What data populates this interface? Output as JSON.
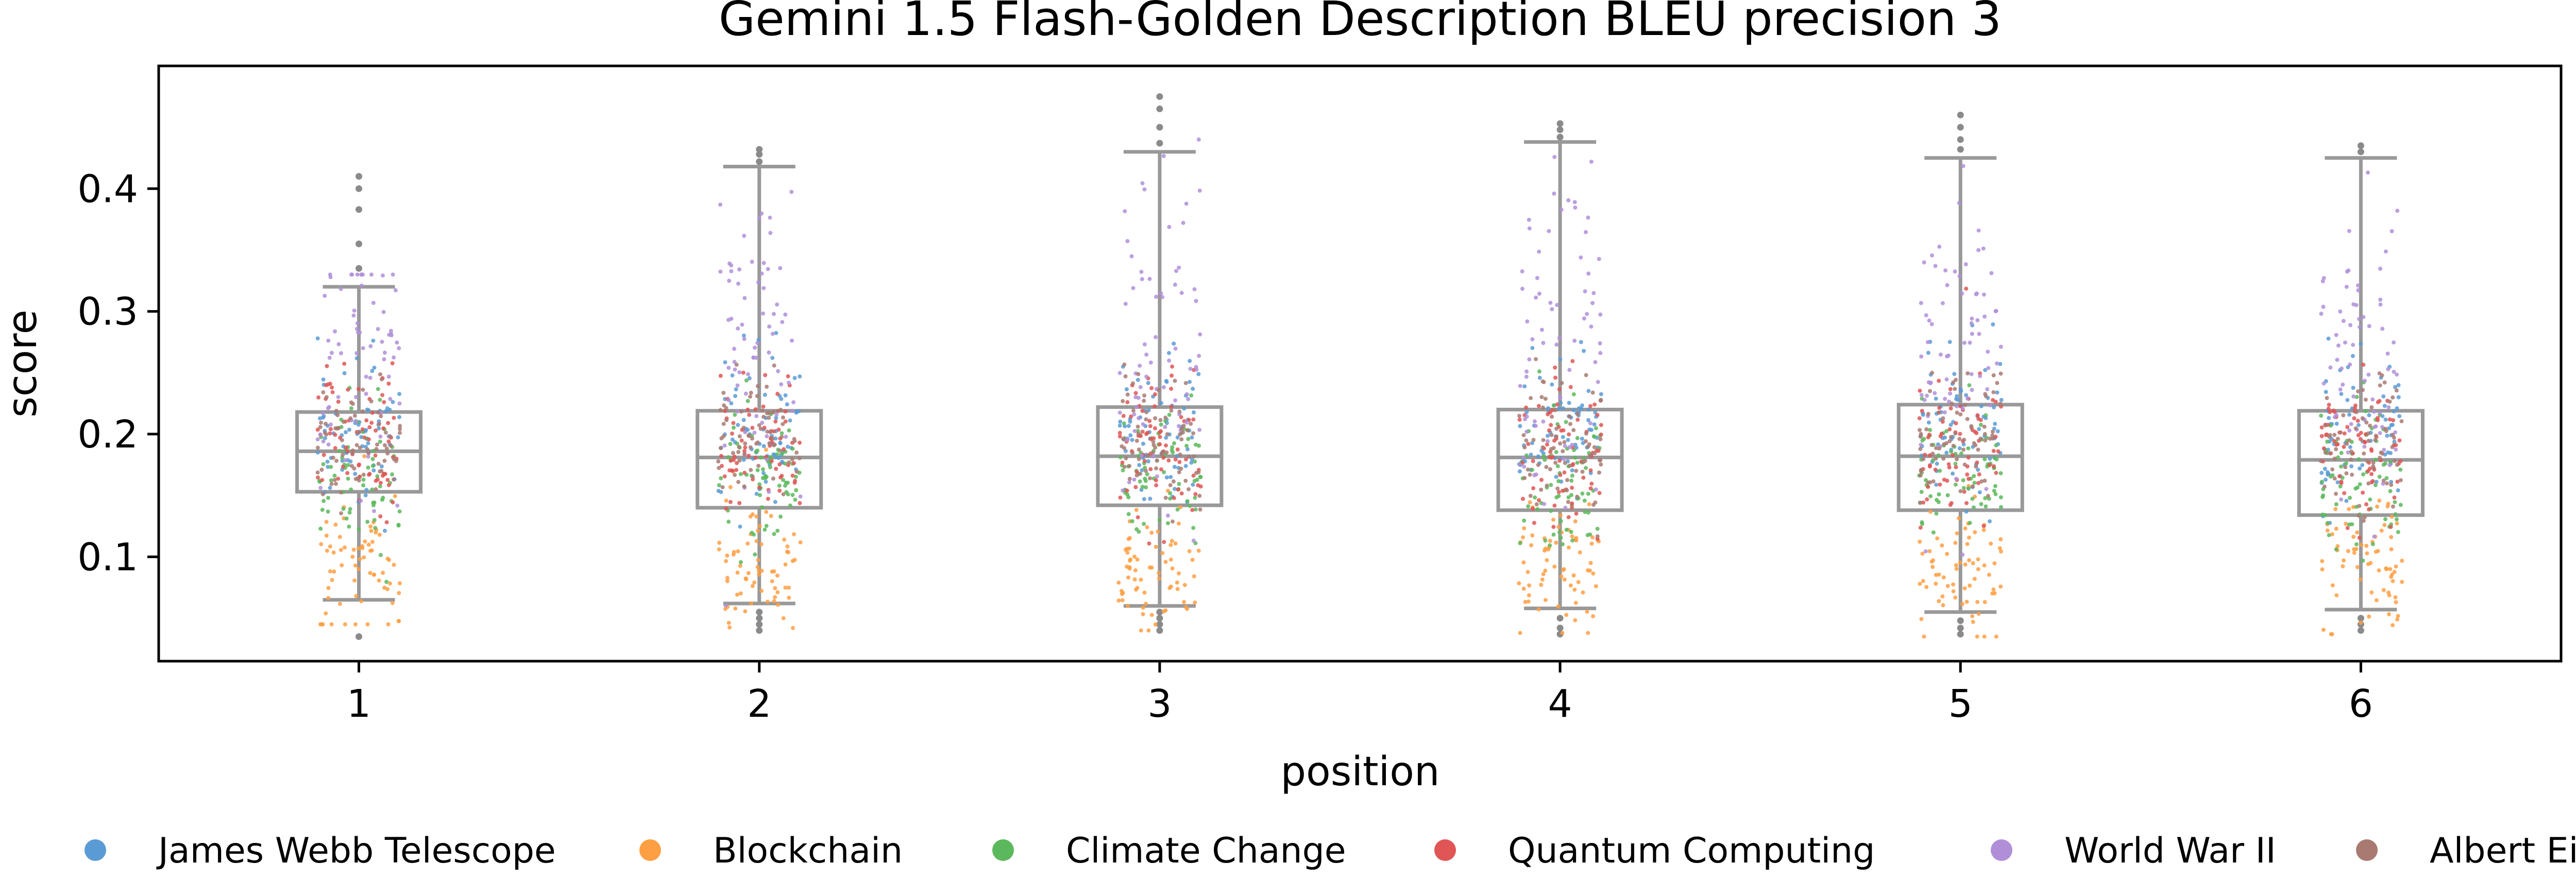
{
  "chart_data": {
    "type": "box-strip",
    "title": "Gemini 1.5 Flash-Golden Description BLEU precision 3",
    "xlabel": "position",
    "ylabel": "score",
    "categories": [
      "1",
      "2",
      "3",
      "4",
      "5",
      "6"
    ],
    "ylim": [
      0.015,
      0.5
    ],
    "yticks": [
      0.1,
      0.2,
      0.3,
      0.4
    ],
    "ytick_labels": [
      "0.1",
      "0.2",
      "0.3",
      "0.4"
    ],
    "grid": false,
    "legend_position": "bottom",
    "box_color": "#999999",
    "boxes": [
      {
        "position": "1",
        "whisker_low": 0.065,
        "q1": 0.153,
        "median": 0.186,
        "q3": 0.218,
        "whisker_high": 0.32,
        "outliers": [
          0.035,
          0.335,
          0.355,
          0.383,
          0.4,
          0.41
        ]
      },
      {
        "position": "2",
        "whisker_low": 0.062,
        "q1": 0.14,
        "median": 0.181,
        "q3": 0.219,
        "whisker_high": 0.418,
        "outliers": [
          0.04,
          0.045,
          0.05,
          0.055,
          0.422,
          0.428,
          0.432
        ]
      },
      {
        "position": "3",
        "whisker_low": 0.06,
        "q1": 0.142,
        "median": 0.182,
        "q3": 0.222,
        "whisker_high": 0.43,
        "outliers": [
          0.04,
          0.045,
          0.05,
          0.055,
          0.437,
          0.45,
          0.465,
          0.475
        ]
      },
      {
        "position": "4",
        "whisker_low": 0.058,
        "q1": 0.138,
        "median": 0.181,
        "q3": 0.22,
        "whisker_high": 0.438,
        "outliers": [
          0.037,
          0.042,
          0.05,
          0.442,
          0.448,
          0.453
        ]
      },
      {
        "position": "5",
        "whisker_low": 0.055,
        "q1": 0.138,
        "median": 0.182,
        "q3": 0.224,
        "whisker_high": 0.425,
        "outliers": [
          0.037,
          0.042,
          0.048,
          0.432,
          0.44,
          0.45,
          0.46
        ]
      },
      {
        "position": "6",
        "whisker_low": 0.057,
        "q1": 0.134,
        "median": 0.179,
        "q3": 0.219,
        "whisker_high": 0.425,
        "outliers": [
          0.04,
          0.045,
          0.05,
          0.43,
          0.435
        ]
      }
    ],
    "series": [
      {
        "name": "James Webb Telescope",
        "color": "#5a9bd5",
        "center": 0.2,
        "spread": 0.032
      },
      {
        "name": "Blockchain",
        "color": "#ff9f43",
        "center": 0.09,
        "spread": 0.028
      },
      {
        "name": "Climate Change",
        "color": "#5cb85c",
        "center": 0.165,
        "spread": 0.03
      },
      {
        "name": "Quantum Computing",
        "color": "#e05555",
        "center": 0.19,
        "spread": 0.03
      },
      {
        "name": "World War II",
        "color": "#b08fd8",
        "center": 0.27,
        "spread": 0.06
      },
      {
        "name": "Albert Einstein",
        "color": "#a97a72",
        "center": 0.195,
        "spread": 0.028
      }
    ]
  }
}
